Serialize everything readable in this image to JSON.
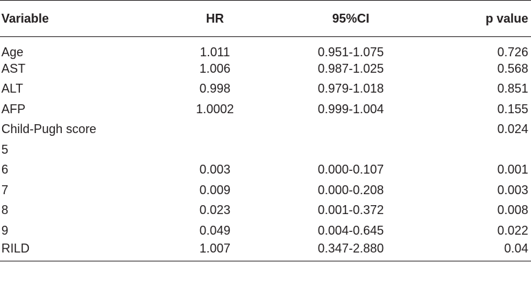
{
  "table": {
    "headers": {
      "variable": "Variable",
      "hr": "HR",
      "ci": "95%CI",
      "p": "p value"
    },
    "rows": [
      {
        "variable": "Age",
        "hr": "1.011",
        "ci": "0.951-1.075",
        "p": "0.726"
      },
      {
        "variable": "AST",
        "hr": "1.006",
        "ci": "0.987-1.025",
        "p": "0.568"
      },
      {
        "variable": "ALT",
        "hr": "0.998",
        "ci": "0.979-1.018",
        "p": "0.851"
      },
      {
        "variable": "AFP",
        "hr": "1.0002",
        "ci": "0.999-1.004",
        "p": "0.155"
      },
      {
        "variable": "Child-Pugh score",
        "hr": "",
        "ci": "",
        "p": "0.024"
      },
      {
        "variable": "5",
        "hr": "",
        "ci": "",
        "p": ""
      },
      {
        "variable": "6",
        "hr": "0.003",
        "ci": "0.000-0.107",
        "p": "0.001"
      },
      {
        "variable": "7",
        "hr": "0.009",
        "ci": "0.000-0.208",
        "p": "0.003"
      },
      {
        "variable": "8",
        "hr": "0.023",
        "ci": "0.001-0.372",
        "p": "0.008"
      },
      {
        "variable": "9",
        "hr": "0.049",
        "ci": "0.004-0.645",
        "p": "0.022"
      },
      {
        "variable": "RILD",
        "hr": "1.007",
        "ci": "0.347-2.880",
        "p": "0.04"
      }
    ]
  }
}
